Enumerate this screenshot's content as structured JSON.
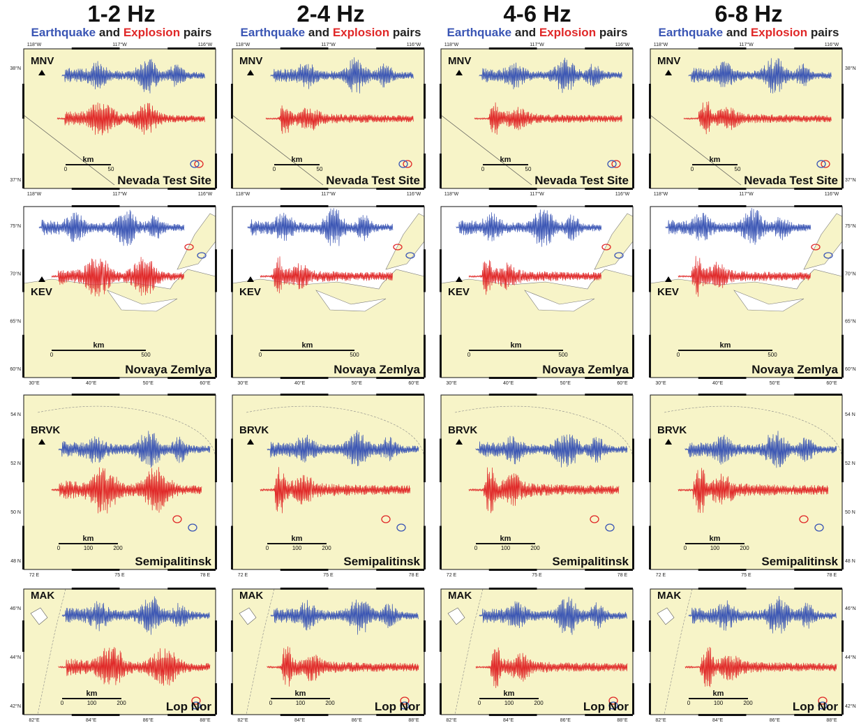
{
  "columns": [
    {
      "title": "1-2 Hz"
    },
    {
      "title": "2-4 Hz"
    },
    {
      "title": "4-6 Hz"
    },
    {
      "title": "6-8 Hz"
    }
  ],
  "subtitle": {
    "eq": "Earthquake",
    "and": "and",
    "ex": "Explosion",
    "pairs": "pairs"
  },
  "colors": {
    "earthquake": "#3a55b4",
    "explosion": "#e02828",
    "land": "#f7f4c8",
    "sea": "#ffffff",
    "frame": "#111111"
  },
  "rows": [
    {
      "site": "Nevada Test Site",
      "station": "MNV",
      "top_ticks": [
        "118°W",
        "117°W",
        "116°W"
      ],
      "bottom_ticks": [
        "118°W",
        "117°W",
        "116°W"
      ],
      "left_ticks": [
        "38°N",
        "37°N"
      ],
      "right_ticks": [
        "38°N",
        "37°N"
      ],
      "scale": {
        "label": "km",
        "ticks": [
          "0",
          "50"
        ]
      }
    },
    {
      "site": "Novaya Zemlya",
      "station": "KEV",
      "bottom_ticks": [
        "30°E",
        "40°E",
        "50°E",
        "60°E"
      ],
      "left_ticks": [
        "75°N",
        "70°N",
        "65°N",
        "60°N"
      ],
      "right_ticks": [
        "75°N",
        "70°N",
        "65°N",
        "60°N"
      ],
      "scale": {
        "label": "km",
        "ticks": [
          "0",
          "500"
        ]
      }
    },
    {
      "site": "Semipalitinsk",
      "station": "BRVK",
      "bottom_ticks": [
        "72 E",
        "75 E",
        "78 E"
      ],
      "left_ticks": [
        "54 N",
        "52 N",
        "50 N",
        "48 N"
      ],
      "right_ticks": [
        "54 N",
        "52 N",
        "50 N",
        "48 N"
      ],
      "scale": {
        "label": "km",
        "ticks": [
          "0",
          "100",
          "200"
        ]
      }
    },
    {
      "site": "Lop Nor",
      "station": "MAK",
      "bottom_ticks": [
        "82°E",
        "84°E",
        "86°E",
        "88°E"
      ],
      "left_ticks": [
        "46°N",
        "44°N",
        "42°N"
      ],
      "right_ticks": [
        "46°N",
        "44°N",
        "42°N"
      ],
      "scale": {
        "label": "km",
        "ticks": [
          "0",
          "100",
          "200"
        ]
      }
    }
  ]
}
